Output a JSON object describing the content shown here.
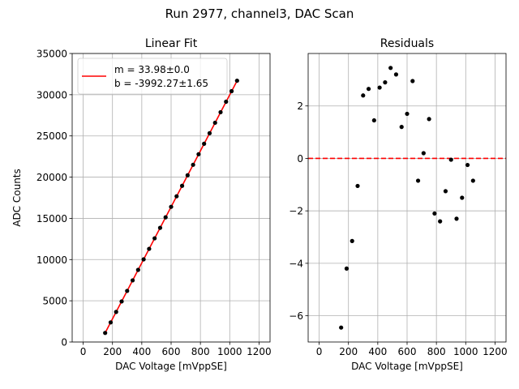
{
  "suptitle": "Run 2977, channel3, DAC Scan",
  "colors": {
    "fit_line": "#ff0000",
    "points": "#000000",
    "zero_line": "#ff0000",
    "grid": "#b0b0b0"
  },
  "chart_data": [
    {
      "type": "scatter",
      "title": "Linear Fit",
      "xlabel": "DAC Voltage [mVppSE]",
      "ylabel": "ADC Counts",
      "xlim": [
        -75,
        1275
      ],
      "ylim": [
        0,
        35000
      ],
      "xticks": [
        "0",
        "200",
        "400",
        "600",
        "800",
        "1000",
        "1200"
      ],
      "yticks": [
        "0",
        "5000",
        "10000",
        "15000",
        "20000",
        "25000",
        "30000",
        "35000"
      ],
      "grid": true,
      "legend_position": "upper-left",
      "legend": [
        "m = 33.98±0.0",
        "b = -3992.27±1.65"
      ],
      "fit": {
        "slope": 33.98,
        "intercept": -3992.27,
        "x_range": [
          150,
          1050
        ]
      },
      "series": [
        {
          "x": [
            150,
            187.5,
            225,
            262.5,
            300,
            337.5,
            375,
            412.5,
            450,
            487.5,
            525,
            562.5,
            600,
            637.5,
            675,
            712.5,
            750,
            787.5,
            825,
            862.5,
            900,
            937.5,
            975,
            1012.5,
            1050
          ],
          "y": [
            1100,
            2380,
            3650,
            4920,
            6200,
            7480,
            8750,
            10030,
            11300,
            12580,
            13850,
            15130,
            16400,
            17680,
            18950,
            20230,
            21500,
            22780,
            24050,
            25330,
            26600,
            27880,
            29150,
            30430,
            31700
          ]
        }
      ]
    },
    {
      "type": "scatter",
      "title": "Residuals",
      "xlabel": "DAC Voltage [mVppSE]",
      "ylabel": "",
      "xlim": [
        -75,
        1275
      ],
      "ylim": [
        -7,
        4
      ],
      "xticks": [
        "0",
        "200",
        "400",
        "600",
        "800",
        "1000",
        "1200"
      ],
      "yticks": [
        "−6",
        "−4",
        "−2",
        "0",
        "2"
      ],
      "ytick_values": [
        -6,
        -4,
        -2,
        0,
        2
      ],
      "grid": true,
      "reference_line": 0,
      "series": [
        {
          "x": [
            150,
            187.5,
            225,
            262.5,
            300,
            337.5,
            375,
            412.5,
            450,
            487.5,
            525,
            562.5,
            600,
            637.5,
            675,
            712.5,
            750,
            787.5,
            825,
            862.5,
            900,
            937.5,
            975,
            1012.5,
            1050
          ],
          "y": [
            -6.45,
            -4.2,
            -3.15,
            -1.05,
            2.4,
            2.65,
            1.45,
            2.7,
            2.9,
            3.45,
            3.2,
            1.2,
            1.7,
            2.95,
            -0.85,
            0.2,
            1.5,
            -2.1,
            -2.4,
            -1.25,
            -0.05,
            -2.3,
            -1.5,
            -0.25,
            -0.85
          ]
        }
      ]
    }
  ]
}
